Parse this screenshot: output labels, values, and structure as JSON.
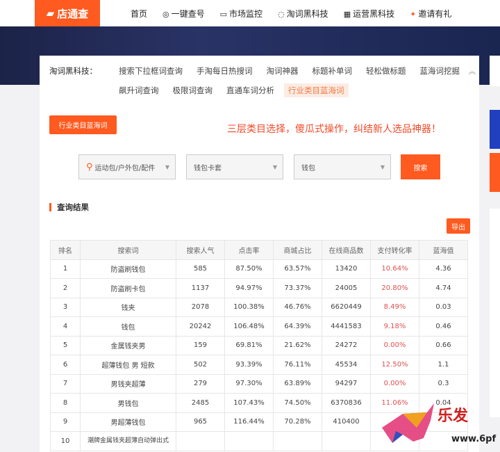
{
  "header": {
    "logo": "店通查",
    "nav": [
      {
        "icon": "",
        "label": "首页"
      },
      {
        "icon": "◎",
        "label": "一键查号"
      },
      {
        "icon": "▭",
        "label": "市场监控"
      },
      {
        "icon": "◌",
        "label": "淘词黑科技"
      },
      {
        "icon": "▦",
        "label": "运营黑科技"
      },
      {
        "icon": "✦",
        "label": "邀请有礼"
      }
    ]
  },
  "tools": {
    "label": "淘词黑科技：",
    "links": [
      "搜索下拉框词查询",
      "手淘每日热搜词",
      "淘词神器",
      "标题补单词",
      "轻松做标题",
      "蓝海词挖掘",
      "飙升词查询",
      "极限词查询",
      "直通车词分析",
      "行业类目蓝海词"
    ],
    "active": "行业类目蓝海词"
  },
  "category_button": "行业类目蓝海词",
  "slogan": "三层类目选择，傻瓜式操作，纠结新人选品神器！",
  "selects": [
    "运动包/户外包/配件",
    "钱包卡套",
    "钱包"
  ],
  "search_button": "搜索",
  "results_title": "查询结果",
  "export_button": "导出",
  "table": {
    "headers": [
      "排名",
      "搜索词",
      "搜索人气",
      "点击率",
      "商城占比",
      "在线商品数",
      "支付转化率",
      "蓝海值"
    ],
    "rows": [
      [
        "1",
        "防盗刷钱包",
        "585",
        "87.50%",
        "63.57%",
        "13420",
        "10.64%",
        "4.36"
      ],
      [
        "2",
        "防盗刷卡包",
        "1137",
        "94.97%",
        "73.37%",
        "24005",
        "20.80%",
        "4.74"
      ],
      [
        "3",
        "钱夹",
        "2078",
        "100.38%",
        "46.76%",
        "6620449",
        "8.49%",
        "0.03"
      ],
      [
        "4",
        "钱包",
        "20242",
        "106.48%",
        "64.39%",
        "4441583",
        "9.18%",
        "0.46"
      ],
      [
        "5",
        "金属钱夹男",
        "159",
        "69.81%",
        "21.62%",
        "24272",
        "0.00%",
        "0.66"
      ],
      [
        "6",
        "超薄钱包 男 短款",
        "502",
        "93.39%",
        "76.11%",
        "45534",
        "12.50%",
        "1.1"
      ],
      [
        "7",
        "男钱夹超薄",
        "279",
        "97.30%",
        "63.89%",
        "94297",
        "0.00%",
        "0.3"
      ],
      [
        "8",
        "男钱包",
        "2485",
        "107.43%",
        "74.50%",
        "6370836",
        "11.06%",
        "0.04"
      ],
      [
        "9",
        "男超薄钱包",
        "965",
        "116.44%",
        "70.28%",
        "410400",
        "",
        ""
      ],
      [
        "10",
        "潮牌金属钱夹超薄自动弹出式",
        "",
        "",
        "",
        "",
        "",
        ""
      ]
    ]
  },
  "watermark": "乐发网 www.6pf.com",
  "colors": {
    "accent": "#ff5a1f",
    "red": "#e05050"
  }
}
